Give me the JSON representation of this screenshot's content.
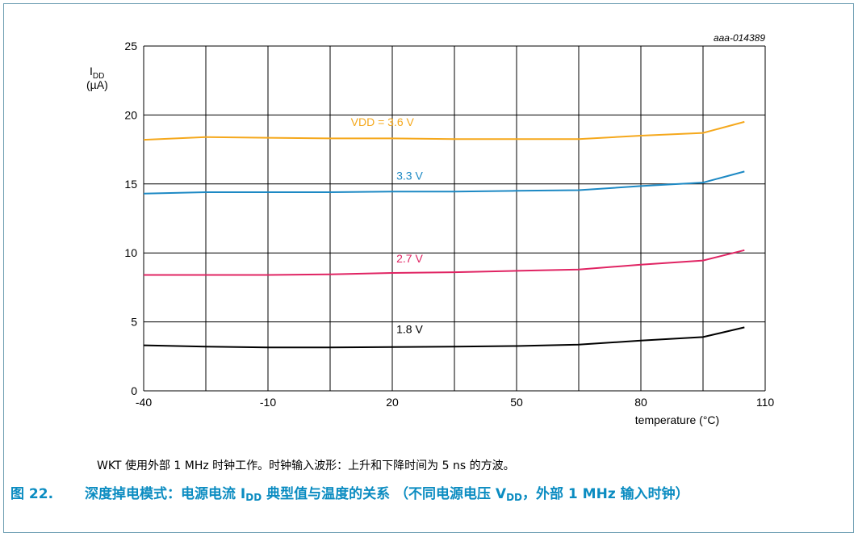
{
  "chart_data": {
    "type": "line",
    "figure_id": "aaa-014389",
    "ylabel_main": "I",
    "ylabel_sub": "DD",
    "ylabel_unit": "(µA)",
    "xlabel": "temperature (°C)",
    "xlim": [
      -40,
      110
    ],
    "ylim": [
      0,
      25
    ],
    "x_ticks": [
      -40,
      -10,
      20,
      50,
      80,
      110
    ],
    "y_ticks": [
      0,
      5,
      10,
      15,
      20,
      25
    ],
    "grid": true,
    "series": [
      {
        "name": "VDD = 3.6 V",
        "color": "#f5a81c",
        "label_at": [
          10,
          19.2
        ],
        "points": [
          [
            -40,
            18.2
          ],
          [
            -25,
            18.4
          ],
          [
            -10,
            18.35
          ],
          [
            5,
            18.3
          ],
          [
            20,
            18.3
          ],
          [
            35,
            18.25
          ],
          [
            50,
            18.25
          ],
          [
            65,
            18.25
          ],
          [
            80,
            18.5
          ],
          [
            95,
            18.7
          ],
          [
            105,
            19.5
          ]
        ]
      },
      {
        "name": "3.3 V",
        "color": "#1d89c4",
        "label_at": [
          21,
          15.3
        ],
        "points": [
          [
            -40,
            14.3
          ],
          [
            -25,
            14.4
          ],
          [
            -10,
            14.4
          ],
          [
            5,
            14.4
          ],
          [
            20,
            14.45
          ],
          [
            35,
            14.45
          ],
          [
            50,
            14.5
          ],
          [
            65,
            14.55
          ],
          [
            80,
            14.85
          ],
          [
            95,
            15.1
          ],
          [
            105,
            15.9
          ]
        ]
      },
      {
        "name": "2.7 V",
        "color": "#e02463",
        "label_at": [
          21,
          9.3
        ],
        "points": [
          [
            -40,
            8.4
          ],
          [
            -25,
            8.4
          ],
          [
            -10,
            8.4
          ],
          [
            5,
            8.45
          ],
          [
            20,
            8.55
          ],
          [
            35,
            8.6
          ],
          [
            50,
            8.7
          ],
          [
            65,
            8.8
          ],
          [
            80,
            9.15
          ],
          [
            95,
            9.45
          ],
          [
            105,
            10.2
          ]
        ]
      },
      {
        "name": "1.8 V",
        "color": "#000000",
        "label_at": [
          21,
          4.2
        ],
        "points": [
          [
            -40,
            3.3
          ],
          [
            -25,
            3.2
          ],
          [
            -10,
            3.15
          ],
          [
            5,
            3.15
          ],
          [
            20,
            3.18
          ],
          [
            35,
            3.2
          ],
          [
            50,
            3.25
          ],
          [
            65,
            3.35
          ],
          [
            80,
            3.65
          ],
          [
            95,
            3.9
          ],
          [
            105,
            4.6
          ]
        ]
      }
    ]
  },
  "note": "WKT 使用外部 1 MHz 时钟工作。时钟输入波形：上升和下降时间为 5 ns 的方波。",
  "caption": {
    "number": "图 22.",
    "part1": "深度掉电模式：电源电流 I",
    "sub1": "DD",
    "part2": " 典型值与温度的关系 （不同电源电压 V",
    "sub2": "DD",
    "part3": "，外部 1 MHz 输入时钟）"
  }
}
